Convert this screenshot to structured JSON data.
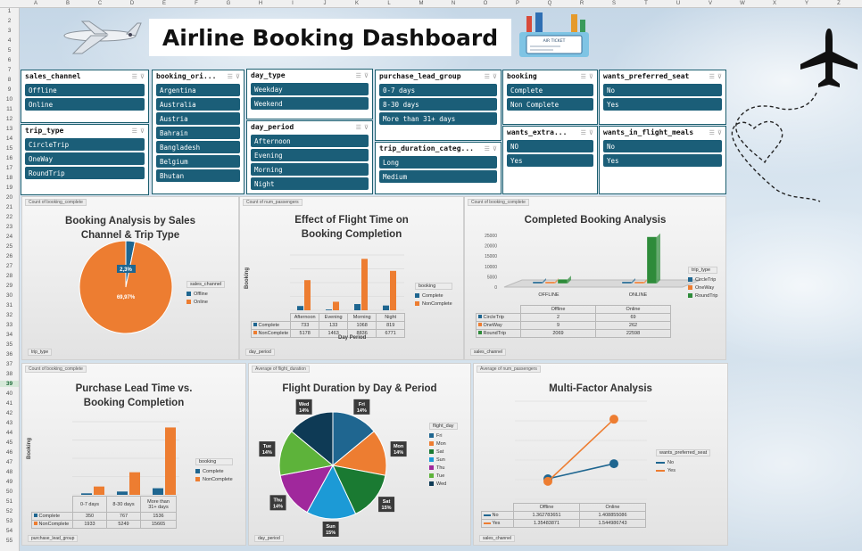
{
  "title": "Airline Booking Dashboard",
  "columns": [
    "A",
    "B",
    "C",
    "D",
    "E",
    "F",
    "G",
    "H",
    "I",
    "J",
    "K",
    "L",
    "M",
    "N",
    "O",
    "P",
    "Q",
    "R",
    "S",
    "T",
    "U",
    "V",
    "W",
    "X",
    "Y",
    "Z"
  ],
  "rows": [
    "1",
    "2",
    "3",
    "4",
    "5",
    "6",
    "7",
    "8",
    "9",
    "10",
    "11",
    "12",
    "13",
    "14",
    "15",
    "16",
    "17",
    "18",
    "19",
    "20",
    "21",
    "22",
    "23",
    "24",
    "25",
    "26",
    "27",
    "28",
    "29",
    "30",
    "31",
    "32",
    "33",
    "34",
    "35",
    "36",
    "37",
    "38",
    "39",
    "40",
    "41",
    "42",
    "43",
    "44",
    "45",
    "46",
    "47",
    "48",
    "49",
    "50",
    "51",
    "52",
    "53",
    "54",
    "55"
  ],
  "selected_row": "39",
  "ticket_text": "AIR TICKET",
  "slicers": [
    {
      "id": "sales_channel",
      "title": "sales_channel",
      "items": [
        "Offline",
        "Online"
      ]
    },
    {
      "id": "trip_type",
      "title": "trip_type",
      "items": [
        "CircleTrip",
        "OneWay",
        "RoundTrip"
      ]
    },
    {
      "id": "booking_origin",
      "title": "booking_ori...",
      "items": [
        "Argentina",
        "Australia",
        "Austria",
        "Bahrain",
        "Bangladesh",
        "Belgium",
        "Bhutan"
      ]
    },
    {
      "id": "day_type",
      "title": "day_type",
      "items": [
        "Weekday",
        "Weekend"
      ]
    },
    {
      "id": "day_period",
      "title": "day_period",
      "items": [
        "Afternoon",
        "Evening",
        "Morning",
        "Night"
      ]
    },
    {
      "id": "purchase_lead_group",
      "title": "purchase_lead_group",
      "items": [
        "0-7 days",
        "8-30 days",
        "More than 31+ days"
      ]
    },
    {
      "id": "trip_duration_category",
      "title": "trip_duration_categ...",
      "items": [
        "Long",
        "Medium"
      ]
    },
    {
      "id": "booking",
      "title": "booking",
      "items": [
        "Complete",
        "Non Complete"
      ]
    },
    {
      "id": "wants_extra",
      "title": "wants_extra...",
      "items": [
        "NO",
        "Yes"
      ]
    },
    {
      "id": "wants_preferred_seat",
      "title": "wants_preferred_seat",
      "items": [
        "No",
        "Yes"
      ]
    },
    {
      "id": "wants_in_flight_meals",
      "title": "wants_in_flight_meals",
      "items": [
        "No",
        "Yes"
      ]
    }
  ],
  "colors": {
    "blue": "#1f6690",
    "orange": "#ed7d31",
    "green": "#2e8b3a",
    "slicer": "#1b5e78"
  },
  "charts": {
    "c1": {
      "tag": "Count of booking_complete",
      "title": "Booking Analysis by Sales Channel & Trip Type",
      "filter": "trip_type",
      "legend_title": "sales_channel",
      "chart_data": {
        "type": "pie",
        "labels": [
          "Offline",
          "Online"
        ],
        "values": [
          2.3,
          69.97
        ],
        "data_labels": [
          "2,3%",
          "69,97%"
        ],
        "colors": [
          "#1f6690",
          "#ed7d31"
        ]
      }
    },
    "c2": {
      "tag": "Count of num_passengers",
      "title": "Effect of Flight Time on Booking Completion",
      "filter": "day_period",
      "legend_title": "booking",
      "ylabel": "Booking",
      "xlabel": "Day Period",
      "chart_data": {
        "type": "bar",
        "categories": [
          "Afternoon",
          "Evening",
          "Morning",
          "Night"
        ],
        "series": [
          {
            "name": "Complete",
            "values": [
              733,
              133,
              1068,
              819
            ],
            "color": "#1f6690"
          },
          {
            "name": "NonComplete",
            "values": [
              5178,
              1463,
              8836,
              6771
            ],
            "color": "#ed7d31"
          }
        ],
        "ylim": [
          0,
          9500
        ]
      }
    },
    "c3": {
      "tag": "Count of booking_complete",
      "title": "Completed Booking Analysis",
      "filter": "sales_channel",
      "legend_title": "trip_type",
      "chart_data": {
        "type": "bar",
        "categories": [
          "Offline",
          "Online"
        ],
        "axis_labels": [
          "OFFLINE",
          "ONLINE"
        ],
        "y_ticks": [
          "25000",
          "20000",
          "15000",
          "10000",
          "5000",
          "0"
        ],
        "ylim": [
          0,
          25000
        ],
        "series": [
          {
            "name": "CircleTrip",
            "values": [
              2,
              69
            ],
            "color": "#1f6690"
          },
          {
            "name": "OneWay",
            "values": [
              9,
              262
            ],
            "color": "#ed7d31"
          },
          {
            "name": "RoundTrip",
            "values": [
              2069,
              22598
            ],
            "color": "#2e8b3a"
          }
        ]
      }
    },
    "c4": {
      "tag": "Count of booking_complete",
      "title": "Purchase Lead Time vs. Booking Completion",
      "filter": "purchase_lead_group",
      "legend_title": "booking",
      "ylabel": "Booking",
      "chart_data": {
        "type": "bar",
        "categories": [
          "0-7 days",
          "8-30 days",
          "More than 31+ days"
        ],
        "series": [
          {
            "name": "Complete",
            "values": [
              350,
              767,
              1536
            ],
            "color": "#1f6690"
          },
          {
            "name": "NonComplete",
            "values": [
              1933,
              5249,
              15665
            ],
            "color": "#ed7d31"
          }
        ],
        "ylim": [
          0,
          17000
        ]
      }
    },
    "c5": {
      "tag": "Average of flight_duration",
      "title": "Flight Duration by Day & Period",
      "filter": "day_period",
      "legend_title": "flight_day",
      "chart_data": {
        "type": "pie",
        "labels": [
          "Fri",
          "Mon",
          "Sat",
          "Sun",
          "Thu",
          "Tue",
          "Wed"
        ],
        "values": [
          14,
          14,
          15,
          15,
          14,
          14,
          14
        ],
        "data_labels": [
          "14%",
          "14%",
          "15%",
          "15%",
          "14%",
          "14%",
          "14%"
        ],
        "colors": [
          "#1f6690",
          "#ed7d31",
          "#1a7a32",
          "#1c9ad6",
          "#a0289c",
          "#5db33a",
          "#0e3a55"
        ]
      }
    },
    "c6": {
      "tag": "Average of num_passengers",
      "title": "Multi-Factor Analysis",
      "filter": "sales_channel",
      "legend_title": "wants_preferred_seat",
      "chart_data": {
        "type": "line",
        "categories": [
          "Offline",
          "Online"
        ],
        "series": [
          {
            "name": "No",
            "values": [
              1.362783651,
              1.408855086
            ],
            "color": "#1f6690"
          },
          {
            "name": "Yes",
            "values": [
              1.35483871,
              1.544986743
            ],
            "color": "#ed7d31"
          }
        ],
        "ylim": [
          1.3,
          1.6
        ]
      }
    }
  }
}
